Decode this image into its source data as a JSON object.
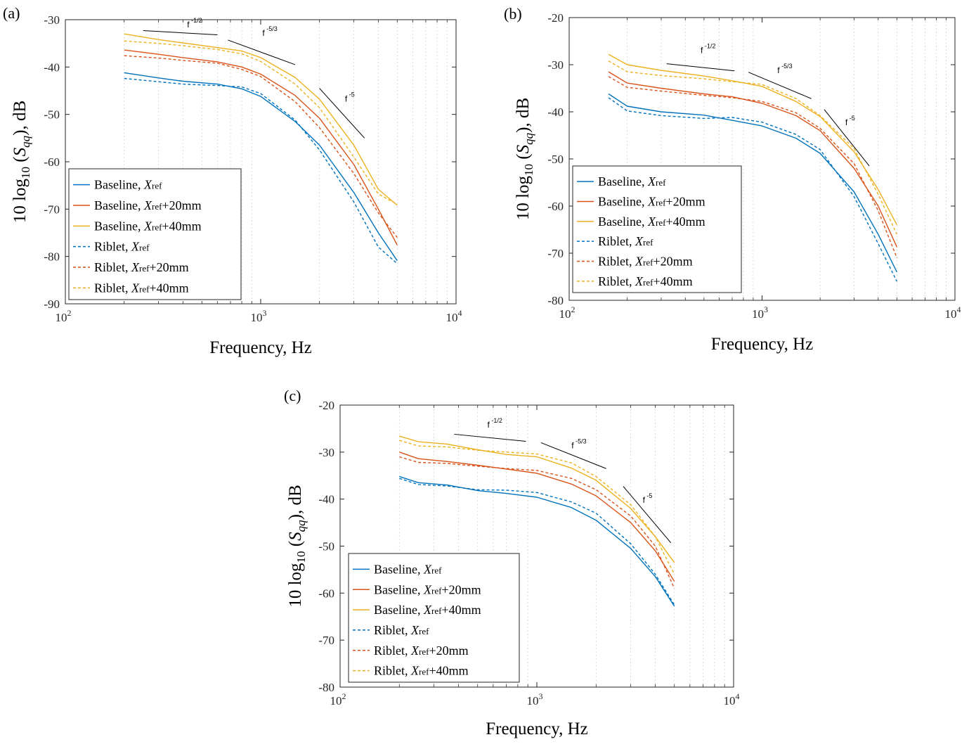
{
  "colors": {
    "blue": "#0072BD",
    "orange": "#D95319",
    "yellow": "#EDB120"
  },
  "chart_data": [
    {
      "panel_label": "(a)",
      "type": "line",
      "title": "",
      "xlabel": "Frequency, Hz",
      "ylabel_main": "10 log",
      "ylabel_sub": "10",
      "ylabel_sym": "S",
      "ylabel_symsub": "qq",
      "ylabel_tail": "), dB",
      "xscale": "log",
      "xlim": [
        100,
        10000
      ],
      "ylim": [
        -90,
        -30
      ],
      "yticks": [
        -90,
        -80,
        -70,
        -60,
        -50,
        -40,
        -30
      ],
      "ytick_labels": [
        "-90",
        "-80",
        "-70",
        "-60",
        "-50",
        "-40",
        "-30"
      ],
      "xtick_labels": [
        {
          "base": "10",
          "exp": "2"
        },
        {
          "base": "10",
          "exp": "3"
        },
        {
          "base": "10",
          "exp": "4"
        }
      ],
      "grid": "x-minor",
      "legend": "lower-left",
      "annotations": [
        {
          "text": "f",
          "exp": "-1/2",
          "x": 420,
          "y": -31.6,
          "line": [
            [
              250,
              -32.3
            ],
            [
              600,
              -33.2
            ]
          ]
        },
        {
          "text": "f",
          "exp": "-5/3",
          "x": 1020,
          "y": -33.4,
          "line": [
            [
              680,
              -34.3
            ],
            [
              1500,
              -39.5
            ]
          ]
        },
        {
          "text": "f",
          "exp": "-5",
          "x": 2700,
          "y": -47.3,
          "line": [
            [
              2000,
              -44.5
            ],
            [
              3400,
              -55
            ]
          ]
        }
      ],
      "series": [
        {
          "name_main": "Baseline, ",
          "name_sym": "X",
          "name_sub": "ref",
          "name_tail": "",
          "color": "blue",
          "dash": "solid",
          "x": [
            200,
            300,
            400,
            600,
            800,
            1000,
            1500,
            2000,
            3000,
            4000,
            5000
          ],
          "y": [
            -41.2,
            -42.3,
            -43.0,
            -43.6,
            -44.6,
            -46.2,
            -51.5,
            -56.5,
            -66.5,
            -75.0,
            -80.9
          ]
        },
        {
          "name_main": "Baseline, ",
          "name_sym": "X",
          "name_sub": "ref",
          "name_tail": "+20mm",
          "color": "orange",
          "dash": "solid",
          "x": [
            200,
            300,
            400,
            600,
            800,
            1000,
            1500,
            2000,
            3000,
            4000,
            5000
          ],
          "y": [
            -36.4,
            -37.3,
            -38.0,
            -38.9,
            -40.0,
            -41.5,
            -46.0,
            -50.8,
            -60.6,
            -70.0,
            -77.6
          ]
        },
        {
          "name_main": "Baseline, ",
          "name_sym": "X",
          "name_sub": "ref",
          "name_tail": "+40mm",
          "color": "yellow",
          "dash": "solid",
          "x": [
            200,
            300,
            400,
            600,
            800,
            1000,
            1500,
            2000,
            3000,
            4000,
            5000
          ],
          "y": [
            -33.0,
            -34.2,
            -34.9,
            -35.9,
            -36.6,
            -38.0,
            -42.2,
            -46.8,
            -56.5,
            -65.8,
            -69.2
          ]
        },
        {
          "name_main": "Riblet, ",
          "name_sym": "X",
          "name_sub": "ref",
          "name_tail": "",
          "color": "blue",
          "dash": "dashed",
          "x": [
            200,
            300,
            400,
            600,
            800,
            1000,
            1500,
            2000,
            3000,
            4000,
            5000
          ],
          "y": [
            -42.4,
            -43.1,
            -43.6,
            -43.9,
            -44.2,
            -45.6,
            -51.2,
            -57.5,
            -68.5,
            -78.0,
            -81.5
          ]
        },
        {
          "name_main": "Riblet, ",
          "name_sym": "X",
          "name_sub": "ref",
          "name_tail": "+20mm",
          "color": "orange",
          "dash": "dashed",
          "x": [
            200,
            300,
            400,
            600,
            800,
            1000,
            1500,
            2000,
            3000,
            4000,
            5000
          ],
          "y": [
            -37.6,
            -38.1,
            -38.6,
            -39.2,
            -40.5,
            -42.0,
            -47.3,
            -52.8,
            -62.5,
            -70.8,
            -76.0
          ]
        },
        {
          "name_main": "Riblet, ",
          "name_sym": "X",
          "name_sub": "ref",
          "name_tail": "+40mm",
          "color": "yellow",
          "dash": "dashed",
          "x": [
            200,
            300,
            400,
            600,
            800,
            1000,
            1500,
            2000,
            3000,
            4000,
            5000
          ],
          "y": [
            -34.5,
            -35.0,
            -35.5,
            -36.3,
            -37.2,
            -38.8,
            -43.6,
            -48.6,
            -59.0,
            -66.8,
            -69.0
          ]
        }
      ]
    },
    {
      "panel_label": "(b)",
      "type": "line",
      "title": "",
      "xlabel": "Frequency, Hz",
      "ylabel_main": "10 log",
      "ylabel_sub": "10",
      "ylabel_sym": "S",
      "ylabel_symsub": "qq",
      "ylabel_tail": "), dB",
      "xscale": "log",
      "xlim": [
        100,
        10000
      ],
      "ylim": [
        -80,
        -20
      ],
      "yticks": [
        -80,
        -70,
        -60,
        -50,
        -40,
        -30,
        -20
      ],
      "ytick_labels": [
        "-80",
        "-70",
        "-60",
        "-50",
        "-40",
        "-30",
        "-20"
      ],
      "xtick_labels": [
        {
          "base": "10",
          "exp": "2"
        },
        {
          "base": "10",
          "exp": "3"
        },
        {
          "base": "10",
          "exp": "4"
        }
      ],
      "grid": "x-minor",
      "legend": "lower-left",
      "annotations": [
        {
          "text": "f",
          "exp": "-1/2",
          "x": 480,
          "y": -27.5,
          "line": [
            [
              320,
              -29.8
            ],
            [
              720,
              -31.3
            ]
          ]
        },
        {
          "text": "f",
          "exp": "-5/3",
          "x": 1200,
          "y": -31.8,
          "line": [
            [
              850,
              -31.6
            ],
            [
              1800,
              -37.2
            ]
          ]
        },
        {
          "text": "f",
          "exp": "-5",
          "x": 2700,
          "y": -42.8,
          "line": [
            [
              2100,
              -39.5
            ],
            [
              3600,
              -51.5
            ]
          ]
        }
      ],
      "series": [
        {
          "name_main": "Baseline, ",
          "name_sym": "X",
          "name_sub": "ref",
          "name_tail": "",
          "color": "blue",
          "dash": "solid",
          "x": [
            160,
            200,
            300,
            500,
            700,
            1000,
            1500,
            2000,
            3000,
            4000,
            5000
          ],
          "y": [
            -36.2,
            -38.8,
            -40.0,
            -40.7,
            -41.8,
            -43.0,
            -45.6,
            -48.8,
            -57.0,
            -66.0,
            -74.0
          ]
        },
        {
          "name_main": "Baseline, ",
          "name_sym": "X",
          "name_sub": "ref",
          "name_tail": "+20mm",
          "color": "orange",
          "dash": "solid",
          "x": [
            160,
            200,
            300,
            500,
            700,
            1000,
            1500,
            2000,
            3000,
            4000,
            5000
          ],
          "y": [
            -31.5,
            -33.9,
            -35.0,
            -36.2,
            -36.8,
            -38.2,
            -40.8,
            -44.0,
            -52.0,
            -60.0,
            -68.7
          ]
        },
        {
          "name_main": "Baseline, ",
          "name_sym": "X",
          "name_sub": "ref",
          "name_tail": "+40mm",
          "color": "yellow",
          "dash": "solid",
          "x": [
            160,
            200,
            300,
            500,
            700,
            1000,
            1500,
            2000,
            3000,
            4000,
            5000
          ],
          "y": [
            -27.8,
            -30.0,
            -31.2,
            -32.4,
            -33.4,
            -34.6,
            -37.8,
            -41.0,
            -48.5,
            -56.5,
            -64.0
          ]
        },
        {
          "name_main": "Riblet, ",
          "name_sym": "X",
          "name_sub": "ref",
          "name_tail": "",
          "color": "blue",
          "dash": "dashed",
          "x": [
            160,
            200,
            300,
            500,
            700,
            1000,
            1500,
            2000,
            3000,
            4000,
            5000
          ],
          "y": [
            -37.0,
            -39.8,
            -40.8,
            -41.4,
            -41.2,
            -42.2,
            -44.8,
            -48.0,
            -58.0,
            -68.0,
            -76.0
          ]
        },
        {
          "name_main": "Riblet, ",
          "name_sym": "X",
          "name_sub": "ref",
          "name_tail": "+20mm",
          "color": "orange",
          "dash": "dashed",
          "x": [
            160,
            200,
            300,
            500,
            700,
            1000,
            1500,
            2000,
            3000,
            4000,
            5000
          ],
          "y": [
            -32.5,
            -34.8,
            -35.6,
            -36.5,
            -37.0,
            -37.8,
            -40.2,
            -43.5,
            -51.0,
            -61.0,
            -71.0
          ]
        },
        {
          "name_main": "Riblet, ",
          "name_sym": "X",
          "name_sub": "ref",
          "name_tail": "+40mm",
          "color": "yellow",
          "dash": "dashed",
          "x": [
            160,
            200,
            300,
            500,
            700,
            1000,
            1500,
            2000,
            3000,
            4000,
            5000
          ],
          "y": [
            -29.2,
            -31.5,
            -32.3,
            -33.0,
            -33.6,
            -34.2,
            -37.2,
            -40.8,
            -47.8,
            -57.5,
            -66.0
          ]
        }
      ]
    },
    {
      "panel_label": "(c)",
      "type": "line",
      "title": "",
      "xlabel": "Frequency, Hz",
      "ylabel_main": "10 log",
      "ylabel_sub": "10",
      "ylabel_sym": "S",
      "ylabel_symsub": "qq",
      "ylabel_tail": "), dB",
      "xscale": "log",
      "xlim": [
        100,
        10000
      ],
      "ylim": [
        -80,
        -20
      ],
      "yticks": [
        -80,
        -70,
        -60,
        -50,
        -40,
        -30,
        -20
      ],
      "ytick_labels": [
        "-80",
        "-70",
        "-60",
        "-50",
        "-40",
        "-30",
        "-20"
      ],
      "xtick_labels": [
        {
          "base": "10",
          "exp": "2"
        },
        {
          "base": "10",
          "exp": "3"
        },
        {
          "base": "10",
          "exp": "4"
        }
      ],
      "grid": "x-minor",
      "legend": "lower-left",
      "annotations": [
        {
          "text": "f",
          "exp": "-1/2",
          "x": 560,
          "y": -24.8,
          "line": [
            [
              380,
              -26.2
            ],
            [
              880,
              -27.7
            ]
          ]
        },
        {
          "text": "f",
          "exp": "-5/3",
          "x": 1500,
          "y": -29.2,
          "line": [
            [
              1050,
              -28.0
            ],
            [
              2250,
              -33.5
            ]
          ]
        },
        {
          "text": "f",
          "exp": "-5",
          "x": 3450,
          "y": -40.8,
          "line": [
            [
              2750,
              -37.3
            ],
            [
              4800,
              -49.3
            ]
          ]
        }
      ],
      "series": [
        {
          "name_main": "Baseline, ",
          "name_sym": "X",
          "name_sub": "ref",
          "name_tail": "",
          "color": "blue",
          "dash": "solid",
          "x": [
            200,
            250,
            350,
            500,
            700,
            1000,
            1500,
            2000,
            3000,
            4000,
            5000
          ],
          "y": [
            -35.2,
            -36.5,
            -37.0,
            -38.2,
            -38.8,
            -39.6,
            -41.8,
            -44.5,
            -50.5,
            -56.5,
            -62.8
          ]
        },
        {
          "name_main": "Baseline, ",
          "name_sym": "X",
          "name_sub": "ref",
          "name_tail": "+20mm",
          "color": "orange",
          "dash": "solid",
          "x": [
            200,
            250,
            350,
            500,
            700,
            1000,
            1500,
            2000,
            3000,
            4000,
            5000
          ],
          "y": [
            -30.0,
            -31.4,
            -32.0,
            -32.8,
            -33.6,
            -34.5,
            -36.8,
            -39.3,
            -45.0,
            -51.0,
            -57.5
          ]
        },
        {
          "name_main": "Baseline, ",
          "name_sym": "X",
          "name_sub": "ref",
          "name_tail": "+40mm",
          "color": "yellow",
          "dash": "solid",
          "x": [
            200,
            250,
            350,
            500,
            700,
            1000,
            1500,
            2000,
            3000,
            4000,
            5000
          ],
          "y": [
            -26.6,
            -27.8,
            -28.3,
            -29.5,
            -30.5,
            -31.0,
            -33.4,
            -36.0,
            -42.0,
            -48.0,
            -53.5
          ]
        },
        {
          "name_main": "Riblet, ",
          "name_sym": "X",
          "name_sub": "ref",
          "name_tail": "",
          "color": "blue",
          "dash": "dashed",
          "x": [
            200,
            250,
            350,
            500,
            700,
            1000,
            1500,
            2000,
            3000,
            4000,
            5000
          ],
          "y": [
            -35.6,
            -36.9,
            -37.2,
            -38.0,
            -38.1,
            -38.6,
            -40.6,
            -43.0,
            -49.5,
            -56.0,
            -62.5
          ]
        },
        {
          "name_main": "Riblet, ",
          "name_sym": "X",
          "name_sub": "ref",
          "name_tail": "+20mm",
          "color": "orange",
          "dash": "dashed",
          "x": [
            200,
            250,
            350,
            500,
            700,
            1000,
            1500,
            2000,
            3000,
            4000,
            5000
          ],
          "y": [
            -31.0,
            -32.2,
            -32.4,
            -33.0,
            -33.5,
            -33.9,
            -35.6,
            -38.0,
            -43.6,
            -50.0,
            -59.0
          ]
        },
        {
          "name_main": "Riblet, ",
          "name_sym": "X",
          "name_sub": "ref",
          "name_tail": "+40mm",
          "color": "yellow",
          "dash": "dashed",
          "x": [
            200,
            250,
            350,
            500,
            700,
            1000,
            1500,
            2000,
            3000,
            4000,
            5000
          ],
          "y": [
            -27.5,
            -28.7,
            -28.9,
            -29.6,
            -30.0,
            -30.4,
            -32.3,
            -35.2,
            -41.2,
            -48.0,
            -56.0
          ]
        }
      ]
    }
  ]
}
